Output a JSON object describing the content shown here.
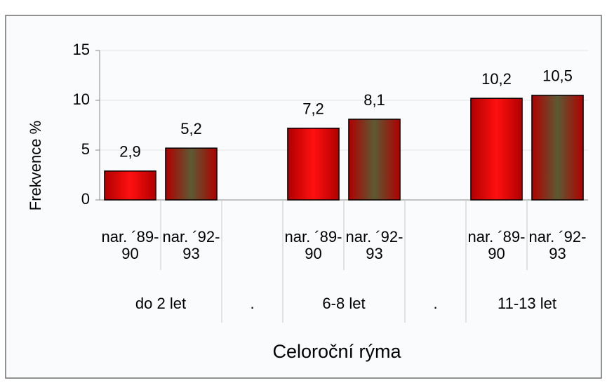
{
  "chart_data": {
    "type": "bar",
    "categories": [
      "nar. ´89-90",
      "nar. ´92-93",
      null,
      "nar. ´89-90",
      "nar. ´92-93",
      null,
      "nar. ´89-90",
      "nar. ´92-93"
    ],
    "groups": [
      "do 2 let",
      "do 2 let",
      ".",
      "6-8 let",
      "6-8 let",
      ".",
      "11-13 let",
      "11-13 let"
    ],
    "values": [
      2.9,
      5.2,
      null,
      7.2,
      8.1,
      null,
      10.2,
      10.5
    ],
    "value_labels": [
      "2,9",
      "5,2",
      null,
      "7,2",
      "8,1",
      null,
      "10,2",
      "10,5"
    ],
    "colors": [
      "#ff1010",
      "#5c5a34",
      null,
      "#ff1010",
      "#5c5a34",
      null,
      "#ff1010",
      "#5c5a34"
    ],
    "edge_color": "#b00000",
    "ylabel": "Frekvence %",
    "xlabel": "Celoroční rýma",
    "ylim": [
      0,
      15
    ],
    "yticks": [
      0,
      5,
      10,
      15
    ],
    "grid": true
  }
}
